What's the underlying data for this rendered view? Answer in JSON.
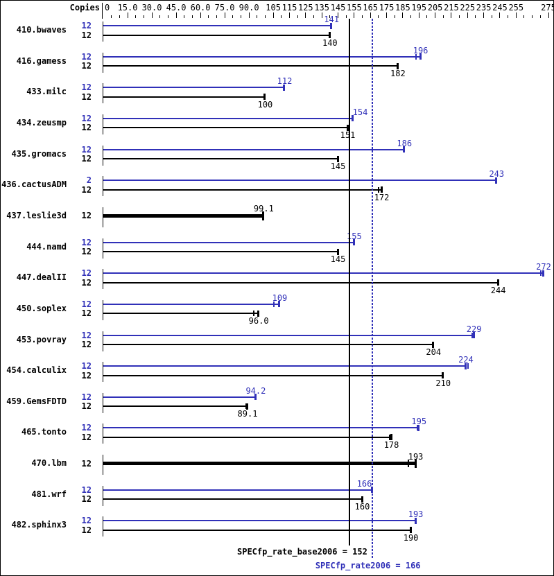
{
  "header": {
    "copies_label": "Copies"
  },
  "colors": {
    "peak": "#3030b8",
    "base": "#000000",
    "background": "#ffffff"
  },
  "chart_data": {
    "type": "bar",
    "orientation": "horizontal",
    "title": "",
    "xlabel": "",
    "ylabel": "Copies",
    "xlim": [
      0,
      275
    ],
    "grid": false,
    "axis": {
      "major_ticks": [
        {
          "value": 0,
          "label": "0"
        },
        {
          "value": 15,
          "label": "15.0"
        },
        {
          "value": 30,
          "label": "30.0"
        },
        {
          "value": 45,
          "label": "45.0"
        },
        {
          "value": 60,
          "label": "60.0"
        },
        {
          "value": 75,
          "label": "75.0"
        },
        {
          "value": 90,
          "label": "90.0"
        },
        {
          "value": 105,
          "label": "105"
        },
        {
          "value": 115,
          "label": "115"
        },
        {
          "value": 125,
          "label": "125"
        },
        {
          "value": 135,
          "label": "135"
        },
        {
          "value": 145,
          "label": "145"
        },
        {
          "value": 155,
          "label": "155"
        },
        {
          "value": 165,
          "label": "165"
        },
        {
          "value": 175,
          "label": "175"
        },
        {
          "value": 185,
          "label": "185"
        },
        {
          "value": 195,
          "label": "195"
        },
        {
          "value": 205,
          "label": "205"
        },
        {
          "value": 215,
          "label": "215"
        },
        {
          "value": 225,
          "label": "225"
        },
        {
          "value": 235,
          "label": "235"
        },
        {
          "value": 245,
          "label": "245"
        },
        {
          "value": 255,
          "label": "255"
        },
        {
          "value": 275,
          "label": "275"
        }
      ],
      "minor_tick_step": 5
    },
    "series_legend": [
      {
        "name": "peak",
        "color": "#3030b8"
      },
      {
        "name": "base",
        "color": "#000000"
      }
    ],
    "benchmarks": [
      {
        "name": "410.bwaves",
        "bars": [
          {
            "series": "peak",
            "copies": "12",
            "value": 141,
            "label": "141"
          },
          {
            "series": "base",
            "copies": "12",
            "value": 140,
            "label": "140"
          }
        ]
      },
      {
        "name": "416.gamess",
        "bars": [
          {
            "series": "peak",
            "copies": "12",
            "value": 196,
            "label": "196",
            "range_tick": 193
          },
          {
            "series": "base",
            "copies": "12",
            "value": 182,
            "label": "182"
          }
        ]
      },
      {
        "name": "433.milc",
        "bars": [
          {
            "series": "peak",
            "copies": "12",
            "value": 112,
            "label": "112"
          },
          {
            "series": "base",
            "copies": "12",
            "value": 100,
            "label": "100"
          }
        ]
      },
      {
        "name": "434.zeusmp",
        "bars": [
          {
            "series": "peak",
            "copies": "12",
            "value": 154,
            "label": "154",
            "label_dx": 11
          },
          {
            "series": "base",
            "copies": "12",
            "value": 151,
            "label": "151"
          }
        ]
      },
      {
        "name": "435.gromacs",
        "bars": [
          {
            "series": "peak",
            "copies": "12",
            "value": 186,
            "label": "186"
          },
          {
            "series": "base",
            "copies": "12",
            "value": 145,
            "label": "145"
          }
        ]
      },
      {
        "name": "436.cactusADM",
        "bars": [
          {
            "series": "peak",
            "copies": "2",
            "value": 243,
            "label": "243"
          },
          {
            "series": "base",
            "copies": "12",
            "value": 172,
            "label": "172",
            "range_tick": 170
          }
        ]
      },
      {
        "name": "437.leslie3d",
        "bars": [
          {
            "series": "both",
            "copies": "12",
            "value": 99.1,
            "label": "99.1"
          }
        ]
      },
      {
        "name": "444.namd",
        "bars": [
          {
            "series": "peak",
            "copies": "12",
            "value": 155,
            "label": "155"
          },
          {
            "series": "base",
            "copies": "12",
            "value": 145,
            "label": "145"
          }
        ]
      },
      {
        "name": "447.dealII",
        "bars": [
          {
            "series": "peak",
            "copies": "12",
            "value": 272,
            "label": "272",
            "range_tick": 270.5
          },
          {
            "series": "base",
            "copies": "12",
            "value": 244,
            "label": "244"
          }
        ]
      },
      {
        "name": "450.soplex",
        "bars": [
          {
            "series": "peak",
            "copies": "12",
            "value": 109,
            "label": "109",
            "range_tick": 105.5
          },
          {
            "series": "base",
            "copies": "12",
            "value": 96,
            "label": "96.0",
            "range_tick": 93
          }
        ]
      },
      {
        "name": "453.povray",
        "bars": [
          {
            "series": "peak",
            "copies": "12",
            "value": 229,
            "label": "229",
            "range_tick": 228
          },
          {
            "series": "base",
            "copies": "12",
            "value": 204,
            "label": "204"
          }
        ]
      },
      {
        "name": "454.calculix",
        "bars": [
          {
            "series": "peak",
            "copies": "12",
            "value": 224,
            "label": "224",
            "range_tick": 225.5
          },
          {
            "series": "base",
            "copies": "12",
            "value": 210,
            "label": "210"
          }
        ]
      },
      {
        "name": "459.GemsFDTD",
        "bars": [
          {
            "series": "peak",
            "copies": "12",
            "value": 94.2,
            "label": "94.2"
          },
          {
            "series": "base",
            "copies": "12",
            "value": 89.1,
            "label": "89.1",
            "range_tick": 88.3
          }
        ]
      },
      {
        "name": "465.tonto",
        "bars": [
          {
            "series": "peak",
            "copies": "12",
            "value": 195,
            "label": "195",
            "range_tick": 194
          },
          {
            "series": "base",
            "copies": "12",
            "value": 178,
            "label": "178",
            "range_tick": 177
          }
        ]
      },
      {
        "name": "470.lbm",
        "bars": [
          {
            "series": "both",
            "copies": "12",
            "value": 193,
            "label": "193",
            "range_tick": 188.5
          }
        ]
      },
      {
        "name": "481.wrf",
        "bars": [
          {
            "series": "peak",
            "copies": "12",
            "value": 166,
            "label": "166",
            "label_dx": -11
          },
          {
            "series": "base",
            "copies": "12",
            "value": 160,
            "label": "160"
          }
        ]
      },
      {
        "name": "482.sphinx3",
        "bars": [
          {
            "series": "peak",
            "copies": "12",
            "value": 193,
            "label": "193"
          },
          {
            "series": "base",
            "copies": "12",
            "value": 190,
            "label": "190"
          }
        ]
      }
    ],
    "reference_lines": [
      {
        "name": "base_rate",
        "value": 152,
        "style": "solid",
        "color": "#000000",
        "label": "SPECfp_rate_base2006 = 152"
      },
      {
        "name": "peak_rate",
        "value": 166,
        "style": "dotted",
        "color": "#3030b8",
        "label": "SPECfp_rate2006 = 166"
      }
    ]
  }
}
